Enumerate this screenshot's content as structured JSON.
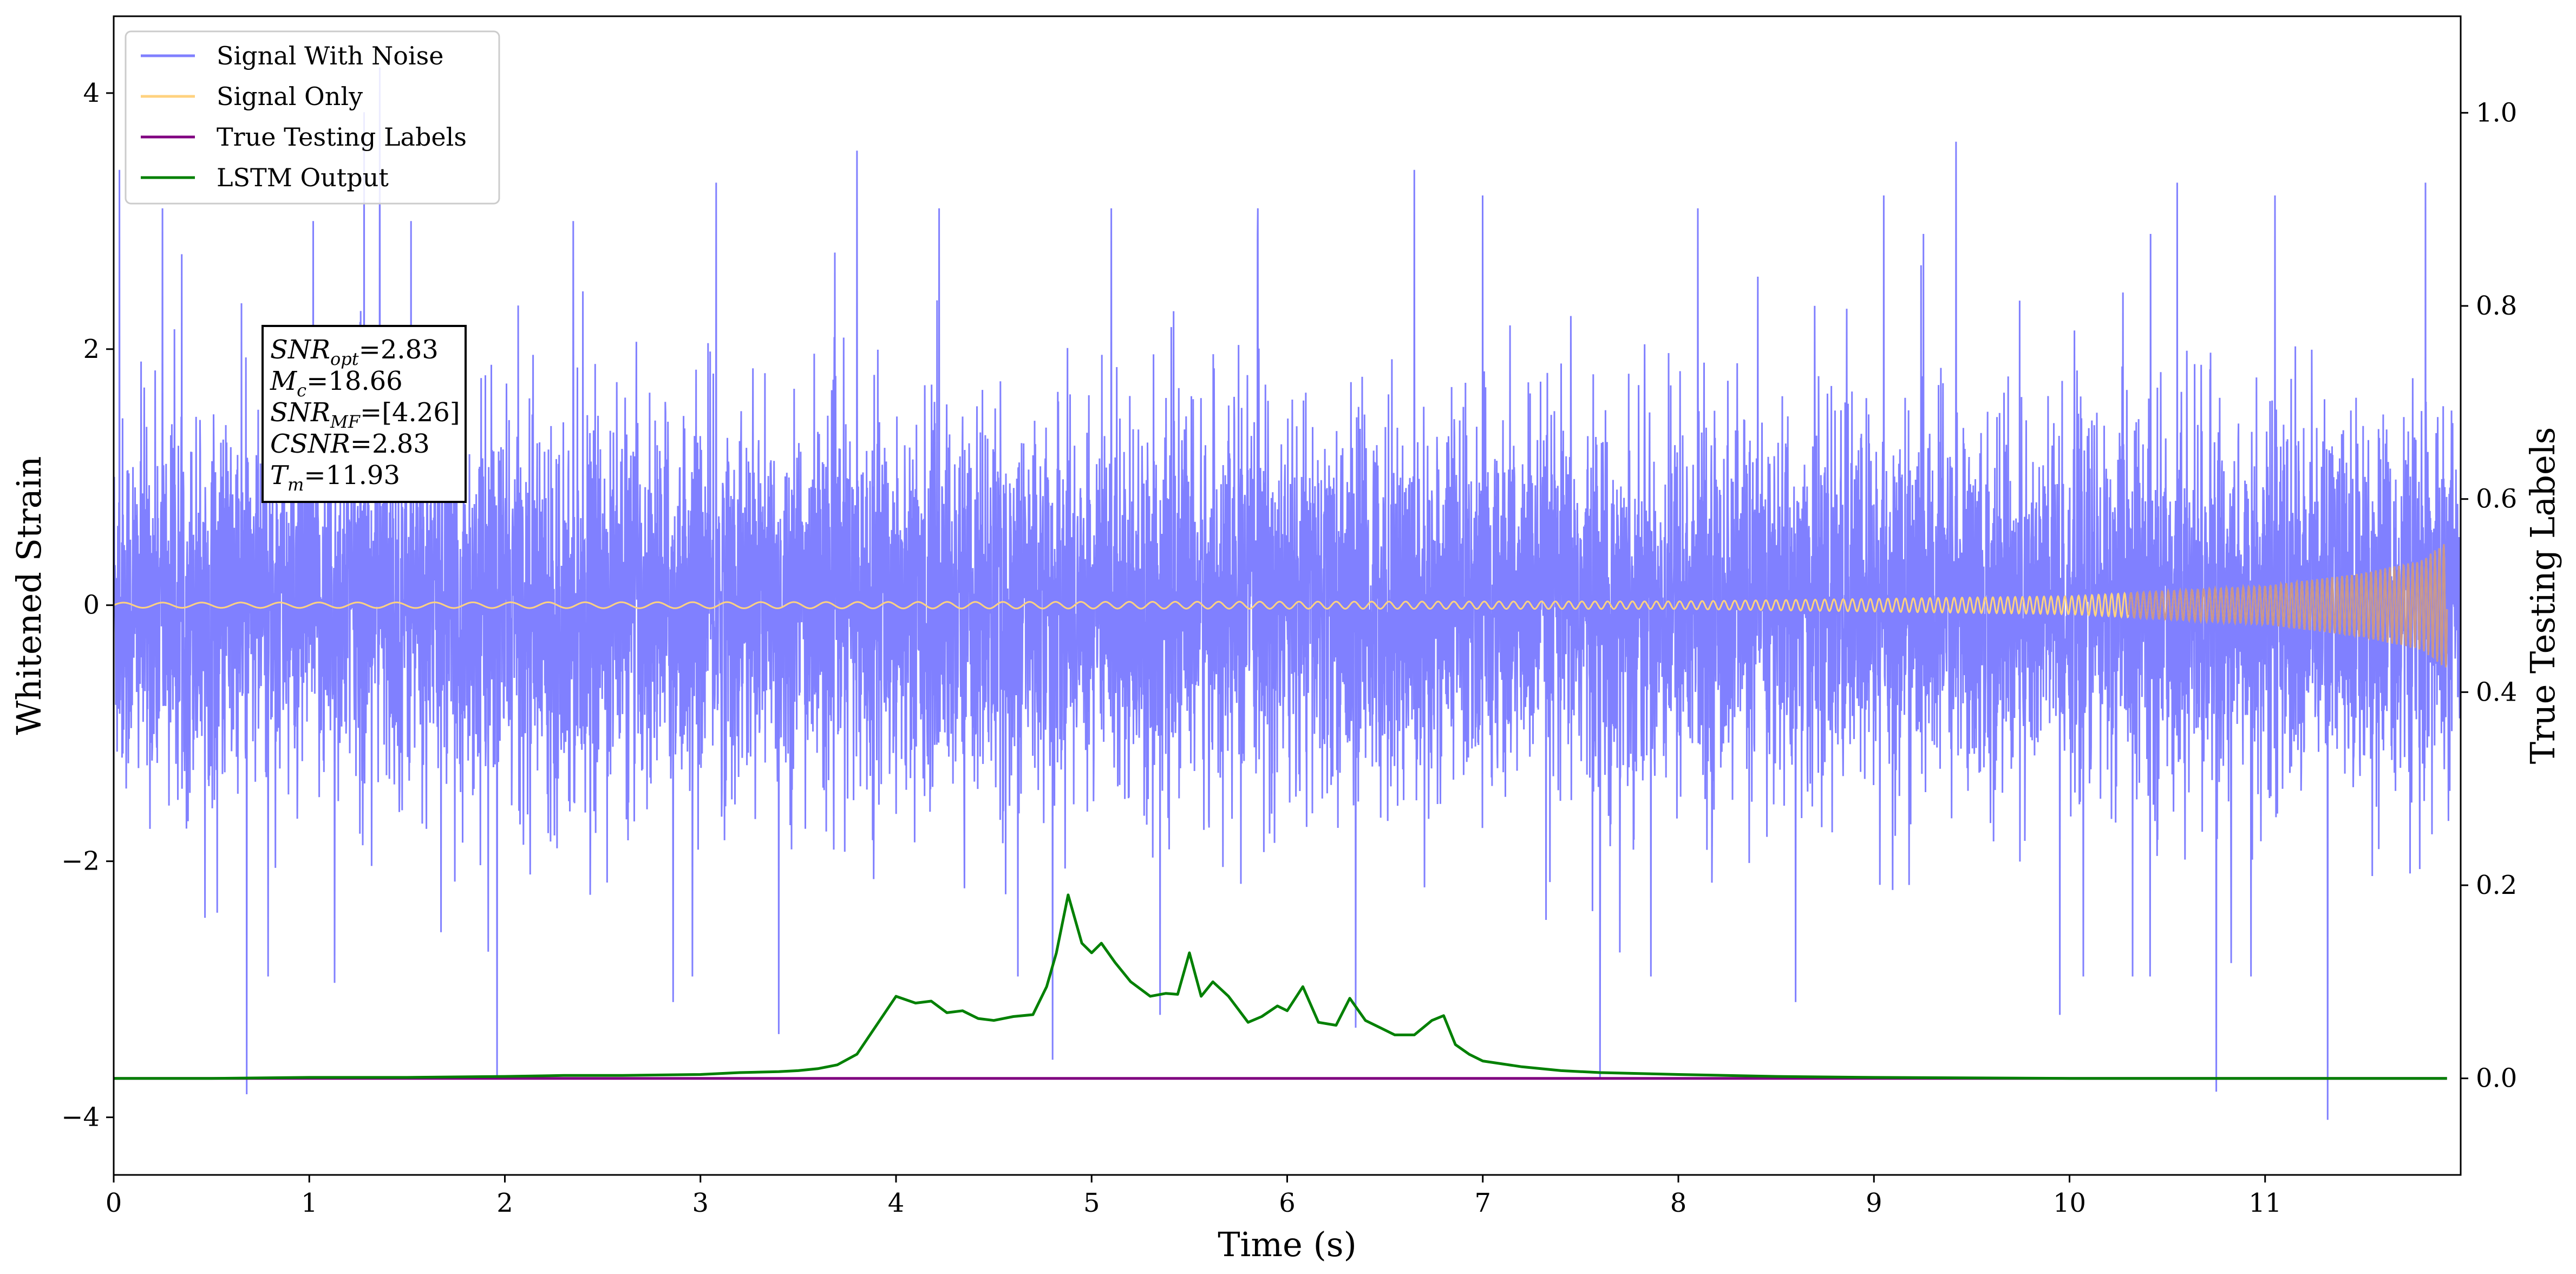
{
  "chart_data": {
    "type": "line",
    "xlabel": "Time (s)",
    "ylabel_left": "Whitened Strain",
    "ylabel_right": "True Testing Labels",
    "xlim": [
      0,
      12
    ],
    "ylim_left": [
      -4.45,
      4.6
    ],
    "ylim_right": [
      -0.1,
      1.1
    ],
    "x_ticks": [
      0,
      1,
      2,
      3,
      4,
      5,
      6,
      7,
      8,
      9,
      10,
      11
    ],
    "x_tick_labels": [
      "0",
      "1",
      "2",
      "3",
      "4",
      "5",
      "6",
      "7",
      "8",
      "9",
      "10",
      "11"
    ],
    "y_left_ticks": [
      -4,
      -2,
      0,
      2,
      4
    ],
    "y_left_tick_labels": [
      "−4",
      "−2",
      "0",
      "2",
      "4"
    ],
    "y_right_ticks": [
      0.0,
      0.2,
      0.4,
      0.6,
      0.8,
      1.0
    ],
    "y_right_tick_labels": [
      "0.0",
      "0.2",
      "0.4",
      "0.6",
      "0.8",
      "1.0"
    ],
    "grid": false,
    "legend_position": "top-left",
    "series": [
      {
        "name": "Signal With Noise",
        "axis": "left",
        "color": "#8080ff",
        "kind": "noise",
        "duration": 12,
        "typical_envelope": 1.4,
        "peaks": [
          {
            "x": 0.03,
            "y": 3.4
          },
          {
            "x": 0.25,
            "y": 3.1
          },
          {
            "x": 0.68,
            "y": -3.82
          },
          {
            "x": 1.02,
            "y": 3.0
          },
          {
            "x": 1.13,
            "y": -2.95
          },
          {
            "x": 1.28,
            "y": 3.85
          },
          {
            "x": 1.36,
            "y": 4.2
          },
          {
            "x": 1.52,
            "y": 3.0
          },
          {
            "x": 1.96,
            "y": -3.7
          },
          {
            "x": 2.35,
            "y": 3.0
          },
          {
            "x": 2.86,
            "y": -3.1
          },
          {
            "x": 3.08,
            "y": 3.3
          },
          {
            "x": 3.4,
            "y": -3.35
          },
          {
            "x": 3.8,
            "y": 3.55
          },
          {
            "x": 4.22,
            "y": 3.1
          },
          {
            "x": 4.8,
            "y": -3.55
          },
          {
            "x": 5.1,
            "y": 3.1
          },
          {
            "x": 5.35,
            "y": -3.2
          },
          {
            "x": 5.85,
            "y": 3.1
          },
          {
            "x": 6.35,
            "y": -3.3
          },
          {
            "x": 6.65,
            "y": 3.4
          },
          {
            "x": 7.0,
            "y": 3.2
          },
          {
            "x": 7.6,
            "y": -3.7
          },
          {
            "x": 8.1,
            "y": 3.1
          },
          {
            "x": 8.6,
            "y": -3.1
          },
          {
            "x": 9.05,
            "y": 3.2
          },
          {
            "x": 9.42,
            "y": 3.62
          },
          {
            "x": 9.95,
            "y": -3.2
          },
          {
            "x": 10.55,
            "y": 3.3
          },
          {
            "x": 10.75,
            "y": -3.8
          },
          {
            "x": 11.05,
            "y": 3.2
          },
          {
            "x": 11.32,
            "y": -4.02
          },
          {
            "x": 11.82,
            "y": 3.3
          }
        ]
      },
      {
        "name": "Signal Only",
        "axis": "left",
        "color": "#ffd27f",
        "kind": "chirp",
        "amplitude_at_x": [
          [
            0,
            0.02
          ],
          [
            8,
            0.03
          ],
          [
            10,
            0.07
          ],
          [
            11,
            0.15
          ],
          [
            11.5,
            0.25
          ],
          [
            11.8,
            0.35
          ],
          [
            11.93,
            0.5
          ]
        ]
      },
      {
        "name": "True Testing Labels",
        "axis": "right",
        "color": "#800080",
        "x": [
          0,
          11.93
        ],
        "y": [
          0,
          0
        ]
      },
      {
        "name": "LSTM Output",
        "axis": "right",
        "color": "#008000",
        "x": [
          0,
          0.5,
          1.0,
          1.5,
          2.0,
          2.3,
          2.6,
          3.0,
          3.2,
          3.4,
          3.5,
          3.6,
          3.7,
          3.8,
          3.9,
          4.0,
          4.1,
          4.18,
          4.26,
          4.34,
          4.42,
          4.5,
          4.6,
          4.7,
          4.77,
          4.82,
          4.88,
          4.95,
          5.0,
          5.05,
          5.12,
          5.2,
          5.3,
          5.38,
          5.44,
          5.5,
          5.56,
          5.62,
          5.7,
          5.8,
          5.87,
          5.95,
          6.0,
          6.08,
          6.16,
          6.25,
          6.32,
          6.4,
          6.48,
          6.55,
          6.65,
          6.74,
          6.8,
          6.86,
          6.93,
          7.0,
          7.2,
          7.4,
          7.6,
          8.0,
          8.5,
          9.0,
          10.0,
          11.0,
          11.93
        ],
        "y": [
          0.0,
          0.0,
          0.001,
          0.001,
          0.002,
          0.003,
          0.003,
          0.004,
          0.006,
          0.007,
          0.008,
          0.01,
          0.014,
          0.025,
          0.055,
          0.085,
          0.078,
          0.08,
          0.068,
          0.07,
          0.062,
          0.06,
          0.064,
          0.066,
          0.095,
          0.13,
          0.19,
          0.14,
          0.13,
          0.14,
          0.12,
          0.1,
          0.085,
          0.088,
          0.087,
          0.13,
          0.085,
          0.1,
          0.085,
          0.058,
          0.064,
          0.075,
          0.07,
          0.095,
          0.058,
          0.055,
          0.083,
          0.06,
          0.052,
          0.045,
          0.045,
          0.06,
          0.065,
          0.035,
          0.025,
          0.018,
          0.012,
          0.008,
          0.006,
          0.004,
          0.002,
          0.001,
          0.0,
          0.0,
          0.0
        ]
      }
    ],
    "annotation_lines": [
      {
        "base": "SNR",
        "sub": "opt",
        "value": "=2.83"
      },
      {
        "base": "M",
        "sub": "c",
        "value": "=18.66"
      },
      {
        "base": "SNR",
        "sub": "MF",
        "value": "=[4.26]"
      },
      {
        "base": "CSNR",
        "sub": "",
        "value": "=2.83"
      },
      {
        "base": "T",
        "sub": "m",
        "value": "=11.93"
      }
    ]
  }
}
